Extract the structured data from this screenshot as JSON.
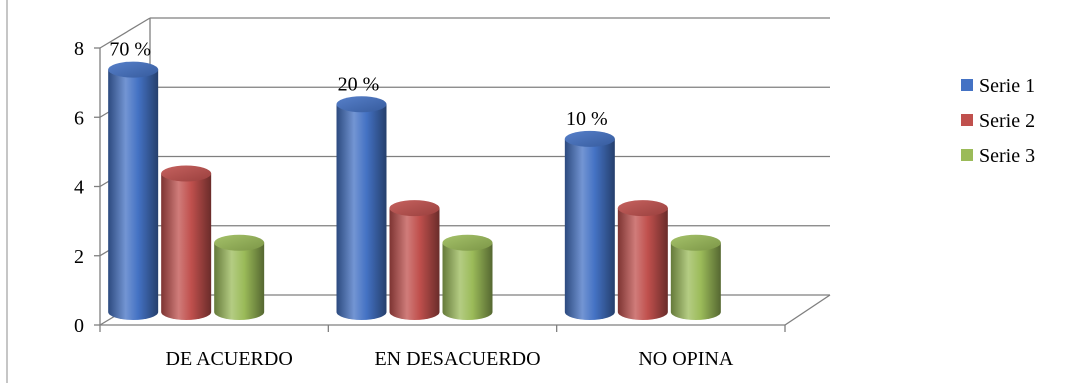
{
  "chart_data": {
    "type": "bar",
    "style": "3d-cylinder",
    "categories": [
      "DE ACUERDO",
      "EN DESACUERDO",
      "NO OPINA"
    ],
    "series": [
      {
        "name": "Serie 1",
        "values": [
          7,
          6,
          5
        ],
        "color": "#4472C4"
      },
      {
        "name": "Serie 2",
        "values": [
          4,
          3,
          3
        ],
        "color": "#C0504D"
      },
      {
        "name": "Serie 3",
        "values": [
          2,
          2,
          2
        ],
        "color": "#9BBB59"
      }
    ],
    "data_labels": [
      "70 %",
      "20 %",
      "10 %"
    ],
    "y_ticks": [
      "0",
      "2",
      "4",
      "6",
      "8"
    ],
    "ylim": [
      0,
      8
    ],
    "grid": true,
    "legend_position": "right"
  }
}
